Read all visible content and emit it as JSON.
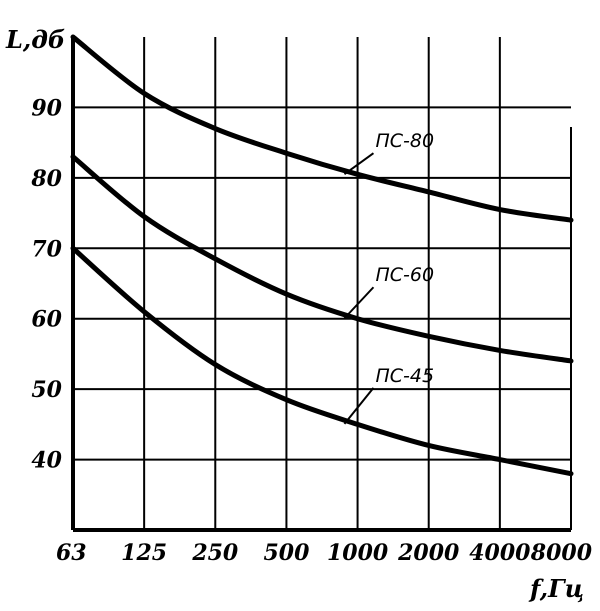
{
  "chart_data": {
    "type": "line",
    "xlabel": "f,Гц",
    "ylabel": "L,дб",
    "x_scale": "log2",
    "categories": [
      "63",
      "125",
      "250",
      "500",
      "1000",
      "2000",
      "4000",
      "8000"
    ],
    "ylim": [
      30,
      100
    ],
    "yticks": [
      40,
      50,
      60,
      70,
      80,
      90
    ],
    "grid": true,
    "series": [
      {
        "name": "ПС-80",
        "values": [
          100,
          92,
          87,
          83.5,
          80.5,
          78,
          75.5,
          74
        ]
      },
      {
        "name": "ПС-60",
        "values": [
          83,
          74.5,
          68.5,
          63.5,
          60,
          57.5,
          55.5,
          54
        ]
      },
      {
        "name": "ПС-45",
        "values": [
          70,
          61,
          53.5,
          48.5,
          45,
          42,
          40,
          38
        ]
      }
    ]
  }
}
